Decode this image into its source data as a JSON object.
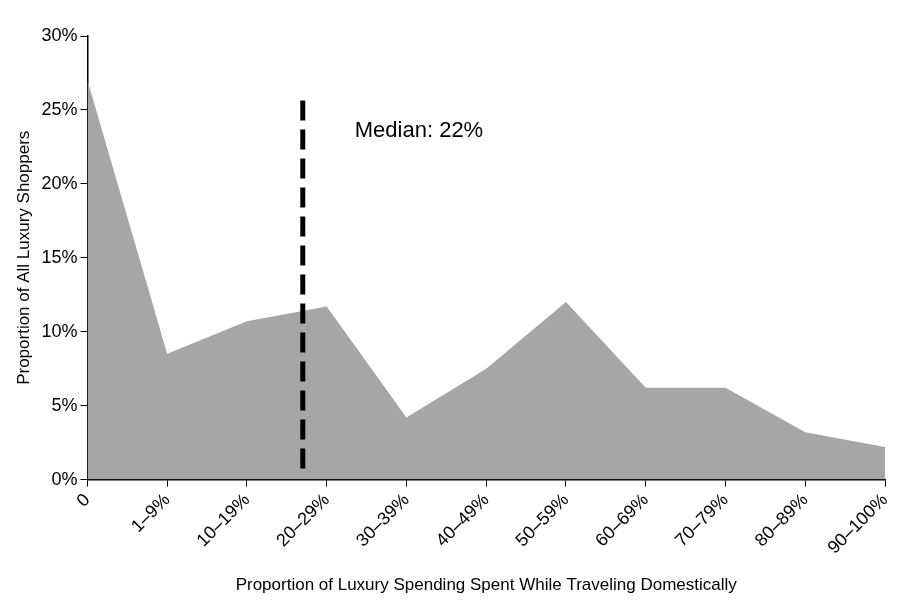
{
  "chart_data": {
    "type": "area",
    "x_label": "Proportion of Luxury Spending Spent While Traveling Domestically",
    "y_label": "Proportion of All Luxury Shoppers",
    "categories": [
      "0",
      "1–9%",
      "10–19%",
      "20–29%",
      "30–39%",
      "40–49%",
      "50–59%",
      "60–69%",
      "70–79%",
      "80–89%",
      "90–100%"
    ],
    "values": [
      27,
      8.5,
      10.7,
      11.7,
      4.2,
      7.5,
      12,
      6.2,
      6.2,
      3.2,
      2.2
    ],
    "color": "#a6a6a6",
    "ylim": [
      0,
      30
    ],
    "yticks": [
      {
        "value": 0,
        "label": "0%"
      },
      {
        "value": 5,
        "label": "5%"
      },
      {
        "value": 10,
        "label": "10%"
      },
      {
        "value": 15,
        "label": "15%"
      },
      {
        "value": 20,
        "label": "20%"
      },
      {
        "value": 25,
        "label": "25%"
      },
      {
        "value": 30,
        "label": "30%"
      }
    ],
    "grid": false,
    "annotations": [
      {
        "text": "Median: 22%",
        "median": 22,
        "line_style": "dashed"
      }
    ]
  }
}
